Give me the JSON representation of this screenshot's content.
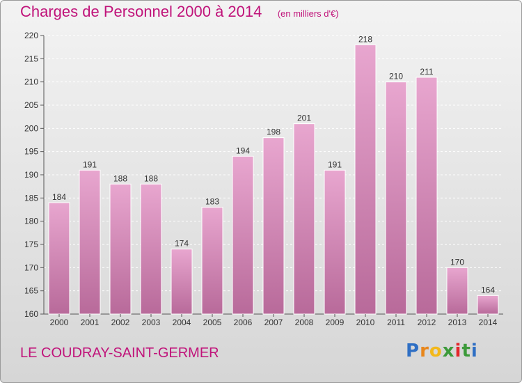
{
  "title": "Charges de Personnel 2000 à 2014",
  "subtitle": "(en milliers d'€)",
  "location": "LE COUDRAY-SAINT-GERMER",
  "logo": {
    "letters": [
      "P",
      "r",
      "o",
      "x",
      "i",
      "t",
      "i"
    ],
    "colors": [
      "#2f6fc4",
      "#e8861b",
      "#f3b81a",
      "#3c9a3a",
      "#e3262a",
      "#3c9a3a",
      "#2f6fc4"
    ]
  },
  "colors": {
    "accent": "#c0137a",
    "bar_top": "#e8a6cf",
    "bar_bottom": "#b86a9a",
    "grid": "#ffffff",
    "axis": "#555555"
  },
  "chart_data": {
    "type": "bar",
    "categories": [
      "2000",
      "2001",
      "2002",
      "2003",
      "2004",
      "2005",
      "2006",
      "2007",
      "2008",
      "2009",
      "2010",
      "2011",
      "2012",
      "2013",
      "2014"
    ],
    "values": [
      184,
      191,
      188,
      188,
      174,
      183,
      194,
      198,
      201,
      191,
      218,
      210,
      211,
      170,
      164
    ],
    "title": "Charges de Personnel 2000 à 2014",
    "ylim": [
      160,
      220
    ],
    "yticks": [
      160,
      165,
      170,
      175,
      180,
      185,
      190,
      195,
      200,
      205,
      210,
      215,
      220
    ],
    "grid": true,
    "data_labels": true
  }
}
